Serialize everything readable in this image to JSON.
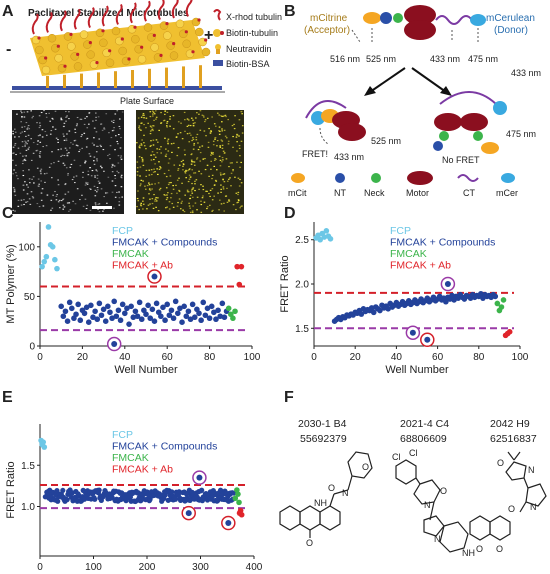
{
  "figure": {
    "panels": {
      "a": "A",
      "b": "B",
      "c": "C",
      "d": "D",
      "e": "E",
      "f": "F"
    }
  },
  "panel_a": {
    "title": "Paclitaxel Stabilized Microtubules",
    "minus": "-",
    "plus": "+",
    "legend": [
      "X-rhod tubulin",
      "Biotin-tubulin",
      "Neutravidin",
      "Biotin-BSA"
    ],
    "surface": "Plate Surface"
  },
  "panel_b": {
    "acceptor": "mCitrine\n(Acceptor)",
    "acceptor_l1": "mCitrine",
    "acceptor_l2": "(Acceptor)",
    "donor_l1": "mCerulean",
    "donor_l2": "(Donor)",
    "wl_516": "516 nm",
    "wl_525": "525 nm",
    "wl_433": "433 nm",
    "wl_475": "475 nm",
    "fret": "FRET!",
    "nofret": "No FRET",
    "legend": [
      "mCit",
      "NT",
      "Neck",
      "Motor",
      "CT",
      "mCer"
    ]
  },
  "legend_series": {
    "fcp": "FCP",
    "cmp": "FMCAK + Compounds",
    "fmcak": "FMCAK",
    "ab": "FMCAK + Ab"
  },
  "colors": {
    "fcp": "#6cc7e6",
    "cmp": "#23429a",
    "fmcak": "#3cb44b",
    "ab": "#e0242a",
    "upper_line": "#d4202a",
    "lower_line": "#9a3aa7",
    "mcit": "#f5a623",
    "neck": "#3cb44b",
    "motor": "#8b0f1f",
    "ct": "#7b3aa3",
    "mcer": "#39a9e0",
    "nt": "#2a4fa8"
  },
  "chart_data": [
    {
      "panel": "C",
      "type": "scatter",
      "xlabel": "Well Number",
      "ylabel": "MT Polymer (%)",
      "xlim": [
        0,
        100
      ],
      "ylim": [
        0,
        125
      ],
      "xticks": [
        "0",
        "20",
        "40",
        "60",
        "80",
        "100"
      ],
      "yticks": [
        "0",
        "50",
        "100"
      ],
      "upper_threshold": 60,
      "lower_threshold": 16,
      "series": [
        {
          "name": "FCP",
          "key": "fcp",
          "x": [
            1,
            2,
            3,
            4,
            5,
            6,
            7,
            8
          ],
          "y": [
            80,
            85,
            90,
            120,
            102,
            100,
            87,
            78
          ]
        },
        {
          "name": "FMCAK + Compounds",
          "key": "cmp",
          "x": [
            10,
            11,
            12,
            13,
            14,
            15,
            16,
            17,
            18,
            19,
            20,
            21,
            22,
            23,
            24,
            25,
            26,
            27,
            28,
            29,
            30,
            31,
            32,
            33,
            34,
            35,
            36,
            37,
            38,
            39,
            40,
            41,
            42,
            43,
            44,
            45,
            46,
            47,
            48,
            49,
            50,
            51,
            52,
            53,
            54,
            55,
            56,
            57,
            58,
            59,
            60,
            61,
            62,
            63,
            64,
            65,
            66,
            67,
            68,
            69,
            70,
            71,
            72,
            73,
            74,
            75,
            76,
            77,
            78,
            79,
            80,
            81,
            82,
            83,
            84,
            85,
            86,
            87,
            88
          ],
          "y": [
            40,
            30,
            35,
            25,
            44,
            38,
            28,
            32,
            42,
            26,
            36,
            33,
            39,
            24,
            41,
            29,
            35,
            27,
            43,
            31,
            37,
            25,
            40,
            34,
            28,
            45,
            30,
            36,
            26,
            42,
            33,
            38,
            22,
            40,
            29,
            35,
            30,
            44,
            27,
            36,
            32,
            41,
            28,
            37,
            25,
            43,
            34,
            30,
            39,
            26,
            42,
            31,
            36,
            28,
            45,
            33,
            38,
            24,
            40,
            30,
            35,
            27,
            42,
            29,
            37,
            33,
            26,
            44,
            31,
            38,
            28,
            40,
            34,
            27,
            36,
            30,
            43,
            29,
            35
          ]
        },
        {
          "name": "FMCAK",
          "key": "fmcak",
          "x": [
            89,
            90,
            91,
            92
          ],
          "y": [
            38,
            32,
            28,
            35
          ]
        },
        {
          "name": "FMCAK + Ab",
          "key": "ab",
          "x": [
            93,
            94,
            95
          ],
          "y": [
            80,
            62,
            80
          ]
        }
      ],
      "circled": [
        {
          "x": 35,
          "y": 2,
          "ring": "lower"
        },
        {
          "x": 54,
          "y": 70,
          "ring": "upper"
        }
      ]
    },
    {
      "panel": "D",
      "type": "scatter",
      "xlabel": "Well Number",
      "ylabel": "FRET Ratio",
      "xlim": [
        0,
        100
      ],
      "ylim": [
        1.3,
        2.7
      ],
      "xticks": [
        "0",
        "20",
        "40",
        "60",
        "80",
        "100"
      ],
      "yticks": [
        "1.5",
        "2.0",
        "2.5"
      ],
      "upper_threshold": 1.9,
      "lower_threshold": 1.5,
      "series": [
        {
          "name": "FCP",
          "key": "fcp",
          "x": [
            1,
            2,
            3,
            4,
            5,
            6,
            7,
            8
          ],
          "y": [
            2.52,
            2.55,
            2.5,
            2.57,
            2.53,
            2.6,
            2.54,
            2.51
          ]
        },
        {
          "name": "FMCAK + Compounds",
          "key": "cmp",
          "x": [
            10,
            11,
            12,
            13,
            14,
            15,
            16,
            17,
            18,
            19,
            20,
            21,
            22,
            23,
            24,
            25,
            26,
            27,
            28,
            29,
            30,
            31,
            32,
            33,
            34,
            35,
            36,
            37,
            38,
            39,
            40,
            41,
            42,
            43,
            44,
            45,
            46,
            47,
            48,
            49,
            50,
            51,
            52,
            53,
            54,
            55,
            56,
            57,
            58,
            59,
            60,
            61,
            62,
            63,
            64,
            65,
            66,
            67,
            68,
            69,
            70,
            71,
            72,
            73,
            74,
            75,
            76,
            77,
            78,
            79,
            80,
            81,
            82,
            83,
            84,
            85,
            86,
            87,
            88
          ],
          "y": [
            1.58,
            1.6,
            1.62,
            1.6,
            1.63,
            1.62,
            1.65,
            1.64,
            1.66,
            1.65,
            1.68,
            1.67,
            1.7,
            1.66,
            1.72,
            1.69,
            1.71,
            1.7,
            1.73,
            1.68,
            1.74,
            1.72,
            1.7,
            1.76,
            1.73,
            1.75,
            1.72,
            1.78,
            1.74,
            1.76,
            1.79,
            1.75,
            1.77,
            1.8,
            1.76,
            1.78,
            1.81,
            1.77,
            1.79,
            1.82,
            1.78,
            1.8,
            1.83,
            1.79,
            1.81,
            1.84,
            1.8,
            1.82,
            1.85,
            1.81,
            1.83,
            1.86,
            1.82,
            1.84,
            1.8,
            1.85,
            1.83,
            1.87,
            1.82,
            1.86,
            1.84,
            1.88,
            1.85,
            1.83,
            1.87,
            1.86,
            1.84,
            1.88,
            1.85,
            1.87,
            1.86,
            1.89,
            1.84,
            1.88,
            1.86,
            1.87,
            1.85,
            1.88,
            1.86
          ]
        },
        {
          "name": "FMCAK",
          "key": "fmcak",
          "x": [
            89,
            90,
            91,
            92
          ],
          "y": [
            1.78,
            1.7,
            1.74,
            1.82
          ]
        },
        {
          "name": "FMCAK + Ab",
          "key": "ab",
          "x": [
            93,
            94,
            95
          ],
          "y": [
            1.42,
            1.44,
            1.46
          ]
        }
      ],
      "circled": [
        {
          "x": 48,
          "y": 1.45,
          "ring": "lower"
        },
        {
          "x": 55,
          "y": 1.37,
          "ring": "upper"
        },
        {
          "x": 65,
          "y": 2.0,
          "ring": "lower"
        }
      ]
    },
    {
      "panel": "E",
      "type": "scatter",
      "xlabel": "Well Number",
      "ylabel": "FRET Ratio",
      "xlim": [
        0,
        400
      ],
      "ylim": [
        0.4,
        2.0
      ],
      "xticks": [
        "0",
        "100",
        "200",
        "300",
        "400"
      ],
      "yticks": [
        "1.0",
        "1.5"
      ],
      "upper_threshold": 1.26,
      "lower_threshold": 0.98,
      "series": [
        {
          "name": "FCP",
          "key": "fcp",
          "x": [
            2,
            4,
            6,
            8
          ],
          "y": [
            1.8,
            1.75,
            1.78,
            1.72
          ]
        },
        {
          "name": "FMCAK + Compounds",
          "key": "cmp",
          "x": [],
          "y": [],
          "band": [
            1.06,
            1.2
          ],
          "xrange": [
            10,
            362
          ]
        },
        {
          "name": "FMCAK",
          "key": "fmcak",
          "x": [
            365,
            368,
            370,
            372
          ],
          "y": [
            1.1,
            1.2,
            1.15,
            1.05
          ]
        },
        {
          "name": "FMCAK + Ab",
          "key": "ab",
          "x": [
            373,
            375,
            377
          ],
          "y": [
            0.92,
            0.95,
            0.9
          ]
        }
      ],
      "circled": [
        {
          "x": 278,
          "y": 0.92,
          "ring": "upper"
        },
        {
          "x": 298,
          "y": 1.35,
          "ring": "lower"
        },
        {
          "x": 352,
          "y": 0.8,
          "ring": "upper"
        }
      ]
    }
  ],
  "panel_f": {
    "compounds": [
      {
        "name": "2030-1 B4",
        "id": "55692379"
      },
      {
        "name": "2021-4 C4",
        "id": "68806609"
      },
      {
        "name": "2042 H9",
        "id": "62516837"
      }
    ],
    "atoms": {
      "n": "N",
      "nh": "NH",
      "o": "O",
      "cl": "Cl"
    }
  }
}
